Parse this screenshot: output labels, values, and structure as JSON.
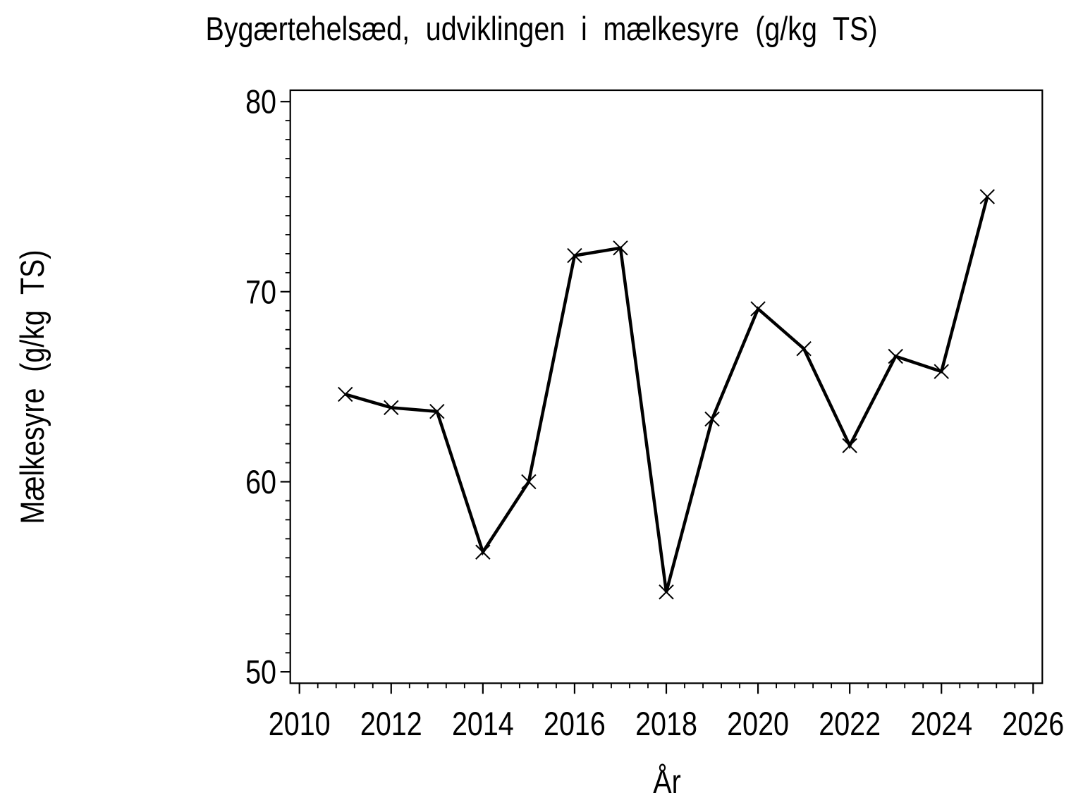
{
  "chart_data": {
    "type": "line",
    "title": "Bygærtehelsæd, udviklingen i mælkesyre (g/kg TS)",
    "xlabel": "År",
    "ylabel": "Mælkesyre (g/kg TS)",
    "x": [
      2011,
      2012,
      2013,
      2014,
      2015,
      2016,
      2017,
      2018,
      2019,
      2020,
      2021,
      2022,
      2023,
      2024,
      2025
    ],
    "values": [
      64.6,
      63.9,
      63.7,
      56.3,
      60.0,
      71.9,
      72.3,
      54.2,
      63.3,
      69.1,
      67.0,
      61.9,
      66.6,
      65.8,
      75.0
    ],
    "xlim": [
      2009.8,
      2026.2
    ],
    "ylim": [
      49.4,
      80.6
    ],
    "x_major_ticks": [
      2010,
      2012,
      2014,
      2016,
      2018,
      2020,
      2022,
      2024,
      2026
    ],
    "y_major_ticks": [
      50,
      60,
      70,
      80
    ],
    "x_minor_divisions_per_major": 5,
    "y_minor_step": 1,
    "grid": false,
    "legend": "none",
    "marker": "x-cross",
    "line_color": "#000000",
    "text_color": "#000000",
    "background_color": "#ffffff"
  }
}
